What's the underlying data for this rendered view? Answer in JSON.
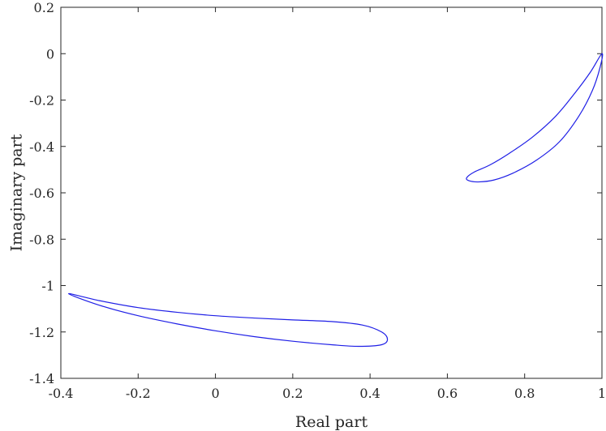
{
  "chart_data": {
    "type": "line",
    "title": "",
    "xlabel": "Real part",
    "ylabel": "Imaginary part",
    "xlim": [
      -0.4,
      1
    ],
    "ylim": [
      -1.4,
      0.2
    ],
    "xticks": [
      "-0.4",
      "-0.2",
      "0",
      "0.2",
      "0.4",
      "0.6",
      "0.8",
      "1"
    ],
    "yticks": [
      "0.2",
      "0",
      "-0.2",
      "-0.4",
      "-0.6",
      "-0.8",
      "-1",
      "-1.2",
      "-1.4"
    ],
    "grid": false,
    "line_color": "#1f1fe6",
    "series": [
      {
        "closed": true,
        "x": [
          1.0,
          0.97,
          0.93,
          0.88,
          0.82,
          0.76,
          0.71,
          0.67,
          0.65,
          0.656,
          0.68,
          0.72,
          0.77,
          0.83,
          0.89,
          0.94,
          0.975,
          0.995,
          1.0
        ],
        "y": [
          0.0,
          -0.08,
          -0.17,
          -0.27,
          -0.36,
          -0.43,
          -0.48,
          -0.51,
          -0.535,
          -0.548,
          -0.553,
          -0.545,
          -0.515,
          -0.46,
          -0.38,
          -0.27,
          -0.16,
          -0.06,
          0.0
        ]
      },
      {
        "closed": true,
        "x": [
          -0.38,
          -0.3,
          -0.2,
          -0.1,
          0.0,
          0.1,
          0.2,
          0.3,
          0.38,
          0.43,
          0.445,
          0.43,
          0.37,
          0.3,
          0.2,
          0.1,
          0.0,
          -0.1,
          -0.2,
          -0.3,
          -0.38
        ],
        "y": [
          -1.035,
          -1.065,
          -1.095,
          -1.115,
          -1.13,
          -1.14,
          -1.148,
          -1.155,
          -1.17,
          -1.2,
          -1.232,
          -1.255,
          -1.262,
          -1.255,
          -1.24,
          -1.22,
          -1.195,
          -1.165,
          -1.13,
          -1.085,
          -1.035
        ]
      }
    ]
  }
}
